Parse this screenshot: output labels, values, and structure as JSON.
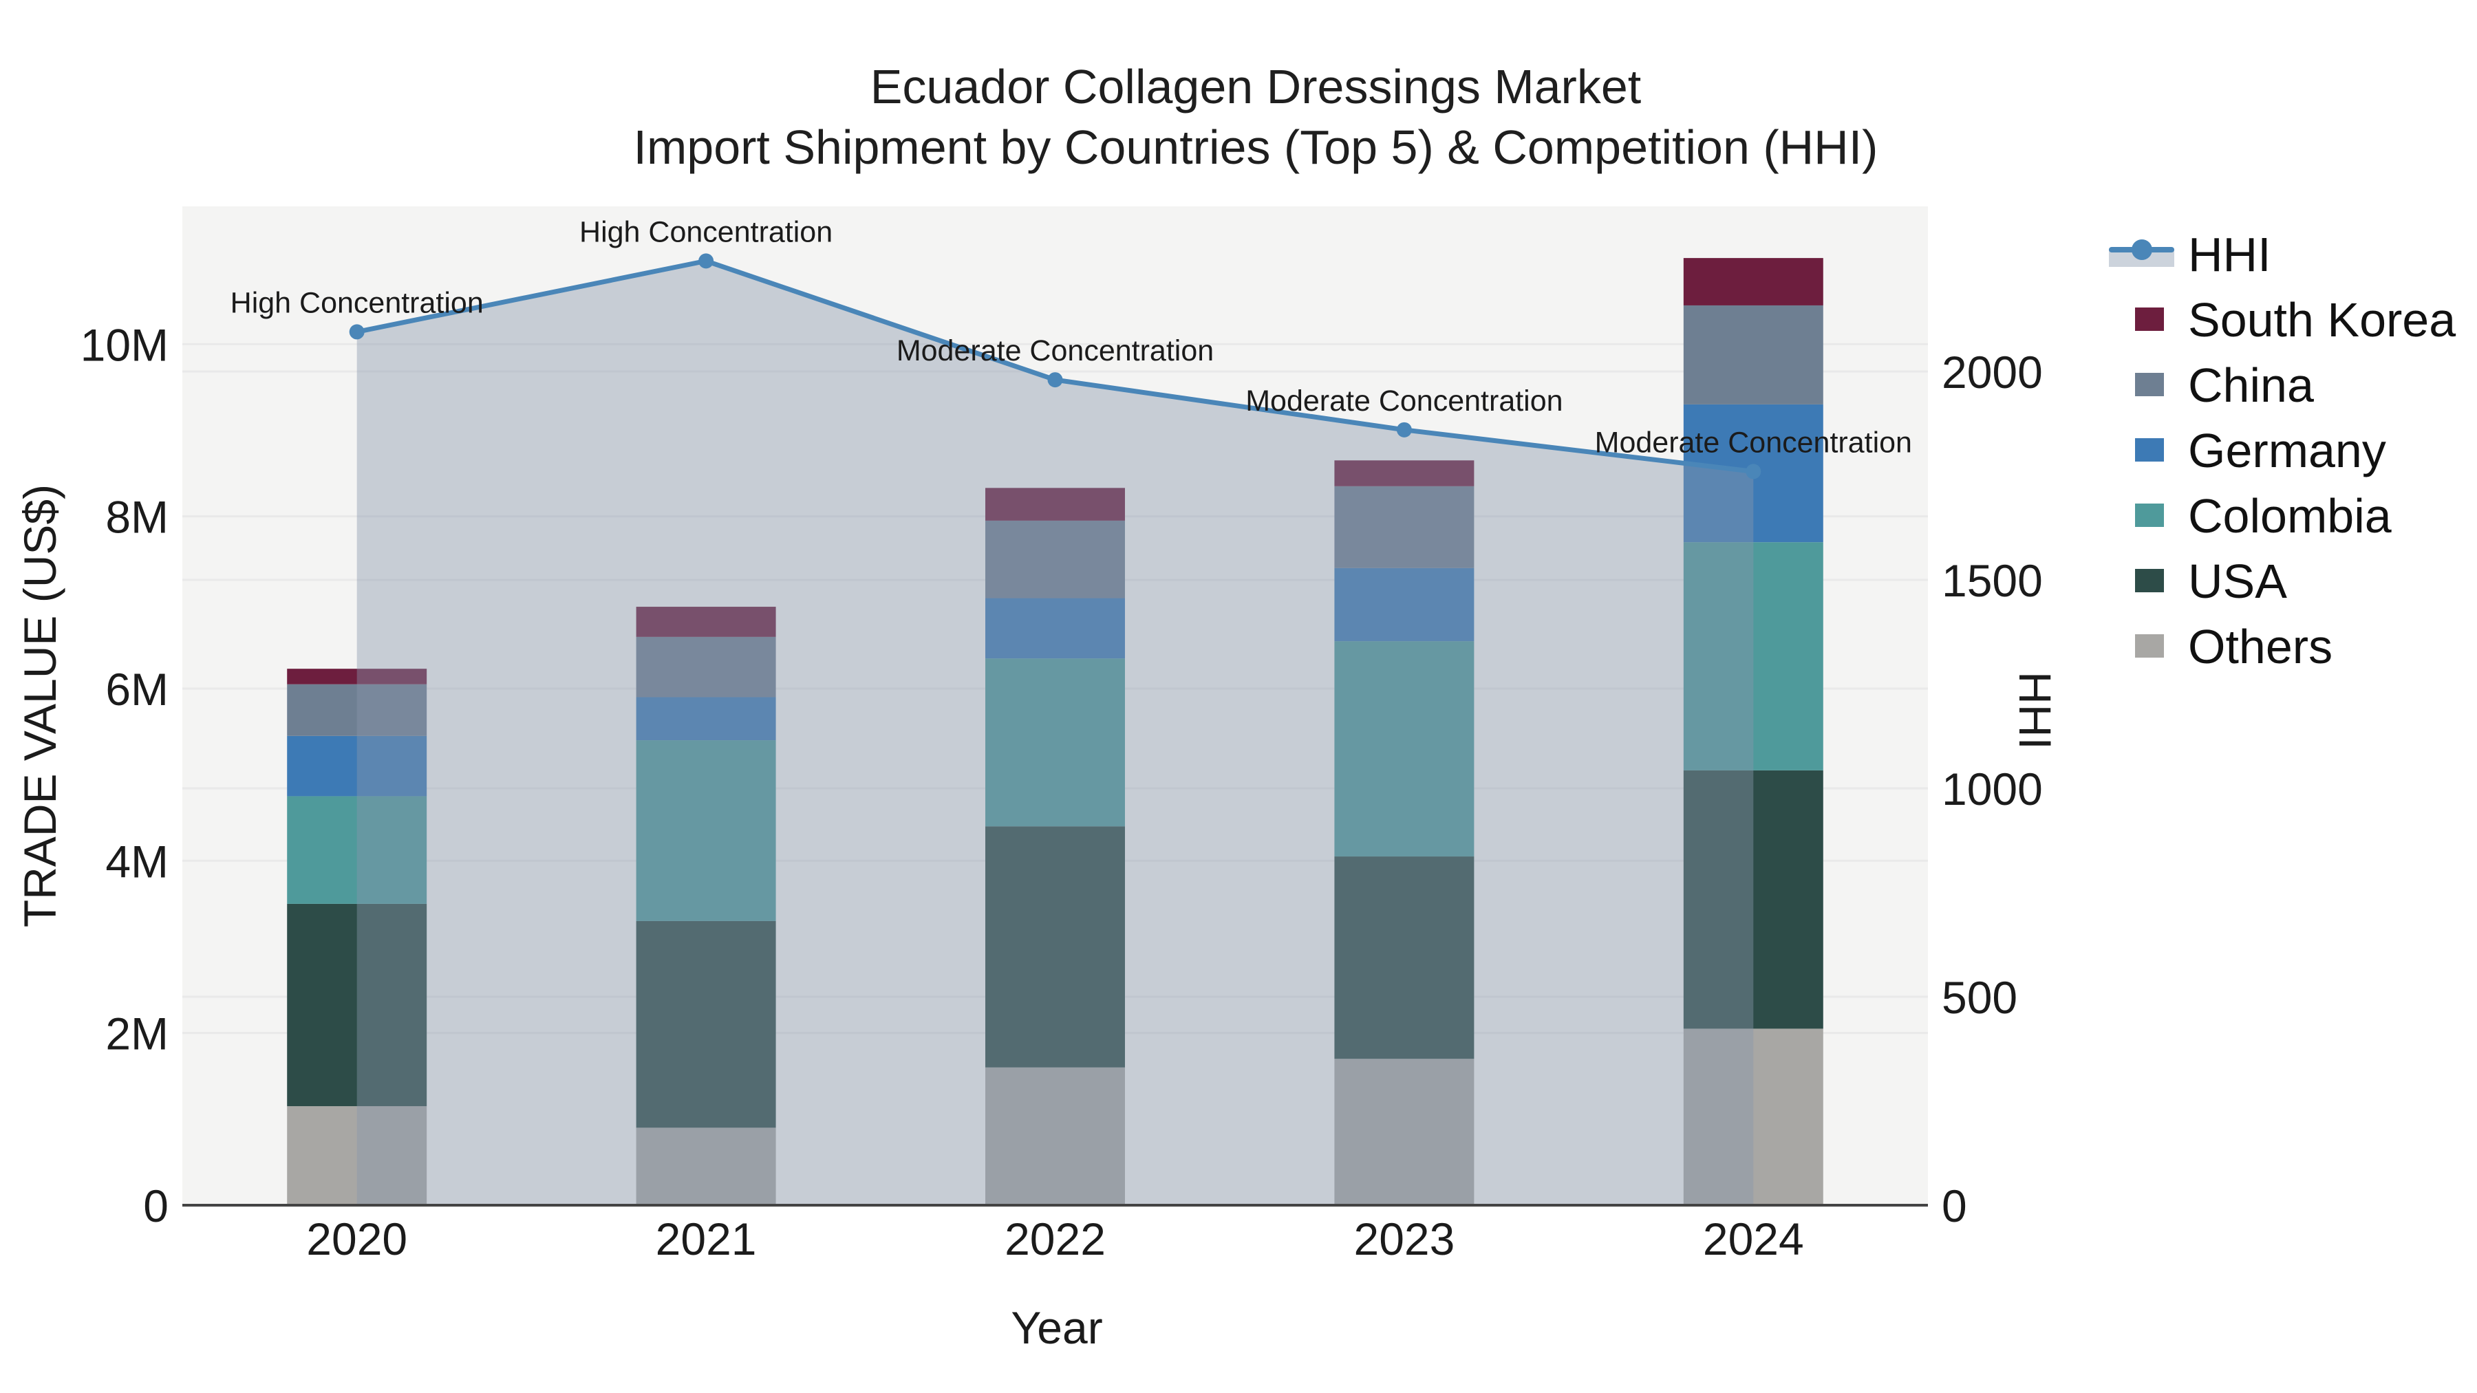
{
  "title": {
    "line1": "Ecuador Collagen Dressings Market",
    "line2": "Import Shipment by Countries (Top 5) & Competition (HHI)"
  },
  "chart_data": {
    "type": "bar+line",
    "title": "Ecuador Collagen Dressings Market Import Shipment by Countries (Top 5) & Competition (HHI)",
    "xlabel": "Year",
    "ylabel": "TRADE VALUE (US$)",
    "y2label": "HHI",
    "categories": [
      "2020",
      "2021",
      "2022",
      "2023",
      "2024"
    ],
    "value_unit": "millions US$",
    "ylim": [
      0,
      11.6
    ],
    "y2lim": [
      0,
      2396
    ],
    "grid": true,
    "legend_position": "right",
    "yticks": [
      {
        "v": 0,
        "label": "0"
      },
      {
        "v": 2,
        "label": "2M"
      },
      {
        "v": 4,
        "label": "4M"
      },
      {
        "v": 6,
        "label": "6M"
      },
      {
        "v": 8,
        "label": "8M"
      },
      {
        "v": 10,
        "label": "10M"
      }
    ],
    "y2ticks": [
      {
        "v": 0,
        "label": "0"
      },
      {
        "v": 500,
        "label": "500"
      },
      {
        "v": 1000,
        "label": "1000"
      },
      {
        "v": 1500,
        "label": "1500"
      },
      {
        "v": 2000,
        "label": "2000"
      }
    ],
    "series": [
      {
        "name": "Others",
        "color": "#a8a7a4",
        "values": [
          1.15,
          0.9,
          1.6,
          1.7,
          2.05
        ]
      },
      {
        "name": "USA",
        "color": "#2d4c48",
        "values": [
          2.35,
          2.4,
          2.8,
          2.35,
          3.0
        ]
      },
      {
        "name": "Colombia",
        "color": "#4f9a9b",
        "values": [
          1.25,
          2.1,
          1.95,
          2.5,
          2.65
        ]
      },
      {
        "name": "Germany",
        "color": "#3d7ab5",
        "values": [
          0.7,
          0.5,
          0.7,
          0.85,
          1.6
        ]
      },
      {
        "name": "China",
        "color": "#6e7f92",
        "values": [
          0.6,
          0.7,
          0.9,
          0.95,
          1.15
        ]
      },
      {
        "name": "South Korea",
        "color": "#6d1e3e",
        "values": [
          0.18,
          0.35,
          0.38,
          0.3,
          0.55
        ]
      }
    ],
    "hhi": {
      "name": "HHI",
      "line_color": "#4a86b8",
      "area_color": "rgba(135,150,172,0.42)",
      "values": [
        2095,
        2265,
        1980,
        1860,
        1760
      ],
      "annotations": [
        "High Concentration",
        "High Concentration",
        "Moderate Concentration",
        "Moderate Concentration",
        "Moderate Concentration"
      ]
    },
    "legend": [
      {
        "name": "HHI",
        "type": "line",
        "color": "#4a86b8"
      },
      {
        "name": "South Korea",
        "type": "swatch",
        "color": "#6d1e3e"
      },
      {
        "name": "China",
        "type": "swatch",
        "color": "#6e7f92"
      },
      {
        "name": "Germany",
        "type": "swatch",
        "color": "#3d7ab5"
      },
      {
        "name": "Colombia",
        "type": "swatch",
        "color": "#4f9a9b"
      },
      {
        "name": "USA",
        "type": "swatch",
        "color": "#2d4c48"
      },
      {
        "name": "Others",
        "type": "swatch",
        "color": "#a8a7a4"
      }
    ],
    "colors": {
      "plot_bg": "#f4f4f3",
      "grid": "#e9e9e9",
      "axis_line": "#444444",
      "text": "#1b1b1b"
    }
  }
}
